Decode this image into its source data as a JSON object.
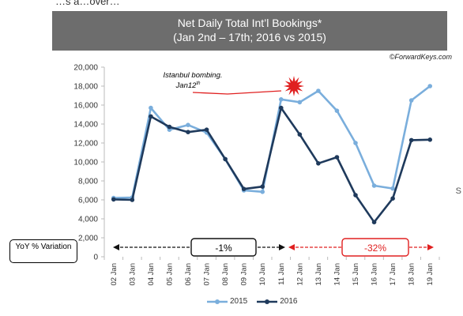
{
  "header": {
    "top_clip_text": "…s a…over…",
    "title_line1": "Net Daily Total Int’l Bookings*",
    "title_line2": "(Jan 2nd – 17th; 2016 vs 2015)"
  },
  "source": "©ForwardKeys.com",
  "side_text": "S",
  "annotation": {
    "line1": "Istanbul bombing.",
    "line2_main": "Jan12",
    "line2_sup": "th"
  },
  "yoy": {
    "label": "YoY % Variation",
    "before_value": "-1%",
    "after_value": "-32%"
  },
  "colors": {
    "s2015": "#7aaedc",
    "s2016": "#1f3a5c",
    "bar": "#6d6d6d",
    "red": "#e02020"
  },
  "chart_data": {
    "type": "line",
    "title": "Net Daily Total Int’l Bookings*",
    "subtitle": "(Jan 2nd – 17th; 2016 vs 2015)",
    "categories": [
      "02 Jan",
      "03 Jan",
      "04 Jan",
      "05 Jan",
      "06 Jan",
      "07 Jan",
      "08 Jan",
      "09 Jan",
      "10 Jan",
      "11 Jan",
      "12 Jan",
      "13 Jan",
      "14 Jan",
      "15 Jan",
      "16 Jan",
      "17 Jan",
      "18 Jan",
      "19 Jan"
    ],
    "ylim": [
      0,
      20000
    ],
    "yticks": [
      "0",
      "2,000",
      "4,000",
      "6,000",
      "8,000",
      "10,000",
      "12,000",
      "14,000",
      "16,000",
      "18,000",
      "20,000"
    ],
    "series": [
      {
        "name": "2015",
        "values": [
          6200,
          6250,
          15700,
          13400,
          13900,
          13100,
          10300,
          7000,
          6850,
          16600,
          16300,
          17500,
          15400,
          12000,
          7500,
          7200,
          16500,
          18000
        ]
      },
      {
        "name": "2016",
        "values": [
          6050,
          6000,
          14800,
          13700,
          13150,
          13400,
          10300,
          7150,
          7400,
          15700,
          12900,
          9850,
          10500,
          6500,
          3650,
          6150,
          12300,
          12350
        ]
      }
    ],
    "legend_position": "bottom",
    "grid": false
  }
}
